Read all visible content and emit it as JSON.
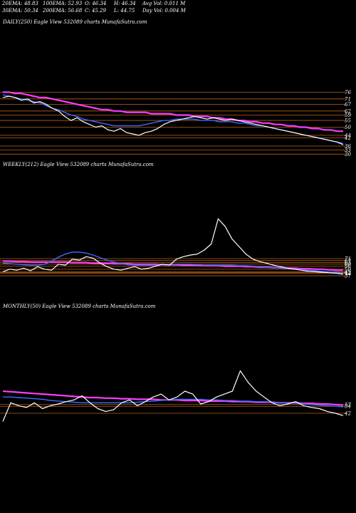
{
  "header": {
    "row1": [
      "20EMA: 48.83",
      "100EMA: 52.93",
      "O: 46.34",
      "H: 46.34",
      "Avg Vol: 0.011  M"
    ],
    "row2": [
      "30EMA: 50.34",
      "200EMA: 56.68",
      "C: 45.29",
      "L: 44.75",
      "Day Vol: 0.004  M"
    ]
  },
  "colors": {
    "background": "#000000",
    "price": "#ffffff",
    "ema_short": "#3b6cff",
    "ema_long": "#ff3bff",
    "ema_mid": "#d9d9d9",
    "levels": "#b8621b"
  },
  "chart_data": [
    {
      "type": "line",
      "title": "DAILY(250) Eagle   View  532089 charts MunafaSutra.com",
      "yticks": [
        "76",
        "71",
        "67",
        "62",
        "59",
        "55",
        "50",
        "44",
        "42",
        "36",
        "33",
        "30"
      ],
      "ylim": [
        27,
        82
      ],
      "series": [
        {
          "values": [
            72,
            73,
            72,
            70,
            71,
            68,
            69,
            67,
            64,
            62,
            58,
            55,
            57,
            54,
            52,
            50,
            51,
            48,
            47,
            49,
            46,
            45,
            44,
            46,
            47,
            49,
            52,
            54,
            55,
            56,
            57,
            58,
            57,
            56,
            57,
            56,
            55,
            56,
            55,
            54,
            53,
            52,
            51,
            50,
            49,
            48,
            47,
            46,
            45,
            44,
            43,
            42,
            41,
            40,
            39,
            37
          ]
        },
        {
          "values": [
            74,
            73,
            72,
            71,
            70,
            69,
            68,
            66,
            64,
            63,
            61,
            59,
            58,
            56,
            55,
            54,
            53,
            52,
            51,
            51,
            51,
            51,
            51,
            52,
            53,
            54,
            55,
            55,
            56,
            56,
            56,
            56,
            55,
            55,
            55,
            54,
            54,
            54,
            53,
            53,
            52,
            51,
            51,
            50,
            49,
            48,
            47,
            46,
            45,
            44,
            43,
            42,
            41,
            40,
            39,
            38
          ]
        },
        {
          "values": [
            76,
            76,
            75,
            75,
            74,
            73,
            72,
            72,
            71,
            70,
            69,
            68,
            67,
            66,
            65,
            64,
            63,
            63,
            62,
            62,
            61,
            61,
            61,
            61,
            60,
            60,
            60,
            60,
            59,
            59,
            59,
            58,
            58,
            58,
            57,
            57,
            56,
            56,
            55,
            55,
            54,
            54,
            53,
            53,
            52,
            52,
            51,
            51,
            50,
            50,
            49,
            49,
            48,
            48,
            47,
            47
          ]
        }
      ]
    },
    {
      "type": "line",
      "title": "WEEKLY(212) Eagle   View  532089 charts MunafaSutra.com",
      "yticks": [
        "71",
        "67",
        "63",
        "60",
        "56",
        "50",
        "45",
        "43",
        "42",
        "37"
      ],
      "ylim": [
        30,
        160
      ],
      "series": [
        {
          "values": [
            45,
            50,
            48,
            52,
            47,
            55,
            50,
            48,
            60,
            58,
            70,
            68,
            75,
            72,
            62,
            55,
            50,
            48,
            52,
            55,
            50,
            52,
            56,
            60,
            58,
            70,
            75,
            78,
            80,
            88,
            100,
            150,
            135,
            110,
            95,
            80,
            70,
            65,
            62,
            58,
            55,
            52,
            50,
            48,
            46,
            45,
            44,
            43,
            42,
            40
          ]
        },
        {
          "values": [
            62,
            61,
            60,
            59,
            58,
            58,
            60,
            66,
            74,
            80,
            84,
            84,
            82,
            78,
            73,
            68,
            64,
            61,
            59,
            58,
            58,
            58,
            58,
            59,
            60,
            60,
            60,
            60,
            59,
            58,
            58,
            58,
            58,
            58,
            57,
            57,
            56,
            55,
            54,
            53,
            52,
            51,
            50,
            49,
            48,
            47,
            46,
            45,
            44,
            43
          ]
        },
        {
          "values": [
            66,
            66,
            65,
            65,
            64,
            64,
            64,
            64,
            64,
            64,
            63,
            63,
            63,
            62,
            62,
            62,
            61,
            61,
            61,
            60,
            60,
            60,
            60,
            59,
            59,
            59,
            58,
            58,
            58,
            57,
            57,
            57,
            56,
            56,
            56,
            55,
            55,
            54,
            54,
            53,
            53,
            52,
            52,
            51,
            51,
            50,
            50,
            49,
            48,
            48
          ]
        }
      ]
    },
    {
      "type": "line",
      "title": "MONTHLY(50) Eagle   View  532089 charts MunafaSutra.com",
      "yticks": [
        "57",
        "54",
        "42"
      ],
      "ylim": [
        20,
        140
      ],
      "series": [
        {
          "values": [
            28,
            60,
            55,
            52,
            60,
            50,
            55,
            58,
            62,
            65,
            72,
            60,
            50,
            45,
            48,
            60,
            65,
            55,
            62,
            70,
            75,
            65,
            70,
            80,
            75,
            58,
            62,
            70,
            75,
            80,
            115,
            95,
            80,
            70,
            60,
            55,
            58,
            62,
            55,
            52,
            50,
            45,
            42,
            38
          ]
        },
        {
          "values": [
            70,
            70,
            69,
            68,
            67,
            66,
            64,
            63,
            62,
            61,
            60,
            60,
            60,
            60,
            60,
            60,
            60,
            61,
            62,
            63,
            64,
            65,
            66,
            66,
            66,
            66,
            65,
            65,
            64,
            64,
            63,
            63,
            62,
            62,
            61,
            60,
            60,
            59,
            58,
            57,
            56,
            55,
            54,
            53
          ]
        },
        {
          "values": [
            80,
            79,
            78,
            77,
            76,
            75,
            74,
            73,
            72,
            71,
            70,
            69,
            69,
            68,
            68,
            67,
            67,
            66,
            66,
            66,
            65,
            65,
            65,
            64,
            64,
            64,
            63,
            63,
            63,
            62,
            62,
            62,
            61,
            61,
            61,
            60,
            60,
            60,
            59,
            59,
            58,
            58,
            57,
            56
          ]
        }
      ]
    }
  ]
}
